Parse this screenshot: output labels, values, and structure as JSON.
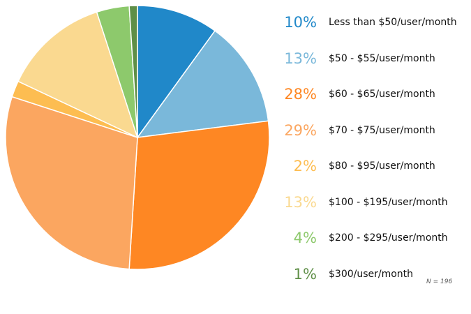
{
  "chart_data": {
    "type": "pie",
    "start_angle_deg": 0,
    "direction": "clockwise",
    "note": "N = 196",
    "slices": [
      {
        "label": "Less than $50/user/month",
        "value": 10,
        "pct_text": "10%",
        "color": "#2088c9",
        "text_color": "#2088c9"
      },
      {
        "label": "$50 - $55/user/month",
        "value": 13,
        "pct_text": "13%",
        "color": "#7ab8da",
        "text_color": "#7ab8da"
      },
      {
        "label": "$60 - $65/user/month",
        "value": 28,
        "pct_text": "28%",
        "color": "#fe8723",
        "text_color": "#fe8723"
      },
      {
        "label": "$70 - $75/user/month",
        "value": 29,
        "pct_text": "29%",
        "color": "#fba660",
        "text_color": "#fba660"
      },
      {
        "label": "$80 - $95/user/month",
        "value": 2,
        "pct_text": "2%",
        "color": "#fdbd51",
        "text_color": "#fdbd51"
      },
      {
        "label": "$100 - $195/user/month",
        "value": 13,
        "pct_text": "13%",
        "color": "#fad990",
        "text_color": "#fad990"
      },
      {
        "label": "$200 - $295/user/month",
        "value": 4,
        "pct_text": "4%",
        "color": "#8dc96c",
        "text_color": "#8dc96c"
      },
      {
        "label": "$300/user/month",
        "value": 1,
        "pct_text": "1%",
        "color": "#5f8f47",
        "text_color": "#5f8f47"
      }
    ]
  }
}
